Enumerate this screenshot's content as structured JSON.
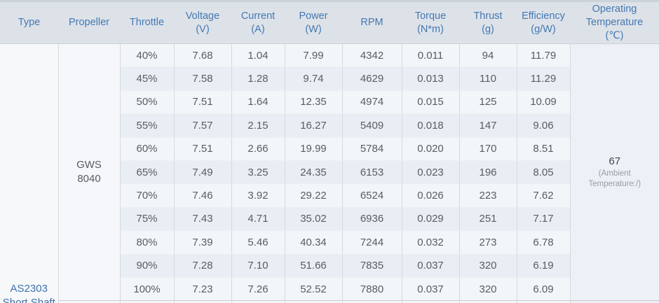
{
  "chart_data": {
    "type": "table",
    "columns": [
      {
        "key": "type",
        "label": "Type",
        "unit": ""
      },
      {
        "key": "propeller",
        "label": "Propeller",
        "unit": ""
      },
      {
        "key": "throttle",
        "label": "Throttle",
        "unit": ""
      },
      {
        "key": "voltage",
        "label": "Voltage",
        "unit": "(V)"
      },
      {
        "key": "current",
        "label": "Current",
        "unit": "(A)"
      },
      {
        "key": "power",
        "label": "Power",
        "unit": "(W)"
      },
      {
        "key": "rpm",
        "label": "RPM",
        "unit": ""
      },
      {
        "key": "torque",
        "label": "Torque",
        "unit": "(N*m)"
      },
      {
        "key": "thrust",
        "label": "Thrust",
        "unit": "(g)"
      },
      {
        "key": "efficiency",
        "label": "Efficiency",
        "unit": "(g/W)"
      },
      {
        "key": "operating_temperature",
        "label": "Operating Temperature",
        "unit": "(℃)"
      }
    ],
    "merged": {
      "type_lines": [
        "AS2303",
        "Short Shaft"
      ],
      "propeller_lines": [
        "GWS",
        "8040"
      ],
      "operating_temperature": {
        "value": "67",
        "note": "(Ambient Temperature:/)"
      }
    },
    "rows": [
      {
        "throttle": "40%",
        "voltage": "7.68",
        "current": "1.04",
        "power": "7.99",
        "rpm": "4342",
        "torque": "0.011",
        "thrust": "94",
        "efficiency": "11.79"
      },
      {
        "throttle": "45%",
        "voltage": "7.58",
        "current": "1.28",
        "power": "9.74",
        "rpm": "4629",
        "torque": "0.013",
        "thrust": "110",
        "efficiency": "11.29"
      },
      {
        "throttle": "50%",
        "voltage": "7.51",
        "current": "1.64",
        "power": "12.35",
        "rpm": "4974",
        "torque": "0.015",
        "thrust": "125",
        "efficiency": "10.09"
      },
      {
        "throttle": "55%",
        "voltage": "7.57",
        "current": "2.15",
        "power": "16.27",
        "rpm": "5409",
        "torque": "0.018",
        "thrust": "147",
        "efficiency": "9.06"
      },
      {
        "throttle": "60%",
        "voltage": "7.51",
        "current": "2.66",
        "power": "19.99",
        "rpm": "5784",
        "torque": "0.020",
        "thrust": "170",
        "efficiency": "8.51"
      },
      {
        "throttle": "65%",
        "voltage": "7.49",
        "current": "3.25",
        "power": "24.35",
        "rpm": "6153",
        "torque": "0.023",
        "thrust": "196",
        "efficiency": "8.05"
      },
      {
        "throttle": "70%",
        "voltage": "7.46",
        "current": "3.92",
        "power": "29.22",
        "rpm": "6524",
        "torque": "0.026",
        "thrust": "223",
        "efficiency": "7.62"
      },
      {
        "throttle": "75%",
        "voltage": "7.43",
        "current": "4.71",
        "power": "35.02",
        "rpm": "6936",
        "torque": "0.029",
        "thrust": "251",
        "efficiency": "7.17"
      },
      {
        "throttle": "80%",
        "voltage": "7.39",
        "current": "5.46",
        "power": "40.34",
        "rpm": "7244",
        "torque": "0.032",
        "thrust": "273",
        "efficiency": "6.78"
      },
      {
        "throttle": "90%",
        "voltage": "7.28",
        "current": "7.10",
        "power": "51.66",
        "rpm": "7835",
        "torque": "0.037",
        "thrust": "320",
        "efficiency": "6.19"
      },
      {
        "throttle": "100%",
        "voltage": "7.23",
        "current": "7.26",
        "power": "52.52",
        "rpm": "7880",
        "torque": "0.037",
        "thrust": "320",
        "efficiency": "6.09"
      }
    ]
  },
  "colors": {
    "header_bg": "#dde2e9",
    "header_text": "#4478b1",
    "top_strip": "#ccd2da",
    "row_light": "#f3f6f9",
    "row_dark": "#e9edf4",
    "merged_left_bg": "#f5f7fa",
    "merged_right_bg": "#edf0f6",
    "data_text": "#585c63",
    "type_text": "#3e71ae",
    "temp_value_text": "#43474d",
    "temp_note_text": "#989ca3",
    "border_vertical": "#d6d8dc",
    "border_row": "#eceff3",
    "border_strong": "#c8ccd2"
  }
}
